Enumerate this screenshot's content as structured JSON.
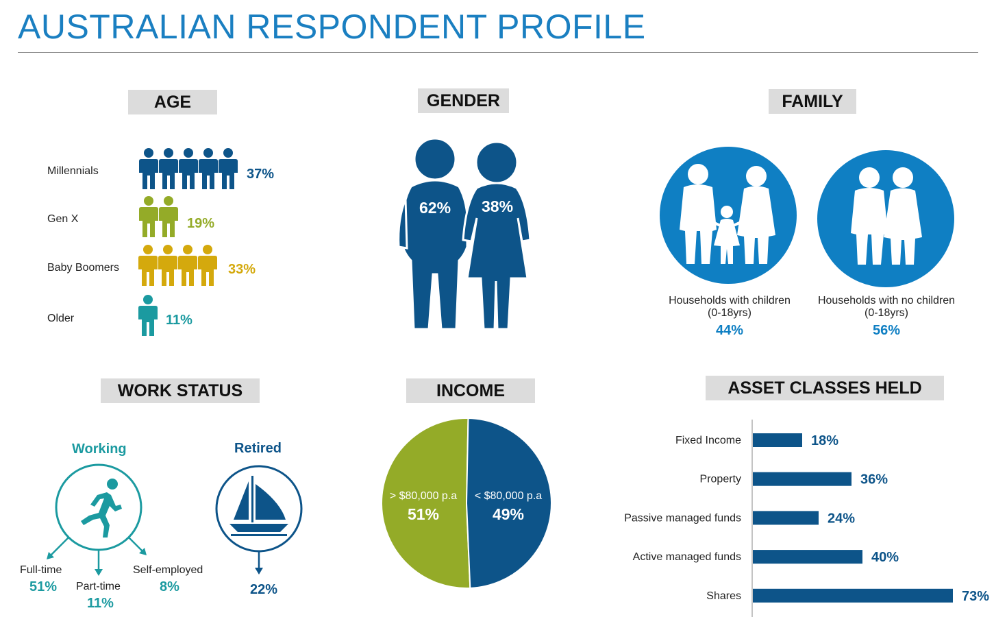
{
  "title": "AUSTRALIAN RESPONDENT PROFILE",
  "colors": {
    "title": "#1a7fc1",
    "navy": "#0d5489",
    "olive": "#94ab28",
    "gold": "#d4a90d",
    "teal": "#1b9aa0",
    "family_blue": "#0f7fc3",
    "pill_bg": "#dcdcdc"
  },
  "sections": {
    "age": "AGE",
    "gender": "GENDER",
    "family": "FAMILY",
    "work": "WORK STATUS",
    "income": "INCOME",
    "assets": "ASSET CLASSES HELD"
  },
  "age": {
    "groups": [
      {
        "label": "Millennials",
        "value": "37%",
        "icons": 5,
        "color": "#0d5489"
      },
      {
        "label": "Gen X",
        "value": "19%",
        "icons": 2,
        "color": "#94ab28"
      },
      {
        "label": "Baby Boomers",
        "value": "33%",
        "icons": 4,
        "color": "#d4a90d"
      },
      {
        "label": "Older",
        "value": "11%",
        "icons": 1,
        "color": "#1b9aa0"
      }
    ]
  },
  "gender": {
    "male": "62%",
    "female": "38%"
  },
  "family": {
    "with_children": {
      "line1": "Households with children",
      "line2": "(0-18yrs)",
      "value": "44%"
    },
    "no_children": {
      "line1": "Households with no children",
      "line2": "(0-18yrs)",
      "value": "56%"
    }
  },
  "work": {
    "working": {
      "title": "Working",
      "icon": "runner-icon",
      "fulltime": {
        "label": "Full-time",
        "value": "51%"
      },
      "parttime": {
        "label": "Part-time",
        "value": "11%"
      },
      "self": {
        "label": "Self-employed",
        "value": "8%"
      }
    },
    "retired": {
      "title": "Retired",
      "icon": "sailboat-icon",
      "value": "22%"
    }
  },
  "income": {
    "high": {
      "label": "> $80,000 p.a",
      "value": "51%"
    },
    "low": {
      "label": "< $80,000 p.a",
      "value": "49%"
    }
  },
  "chart_data": [
    {
      "type": "pie",
      "categories": [
        "> $80,000 p.a",
        "< $80,000 p.a"
      ],
      "values": [
        51,
        49
      ]
    },
    {
      "type": "bar",
      "orientation": "horizontal",
      "categories": [
        "Fixed Income",
        "Property",
        "Passive managed funds",
        "Active managed funds",
        "Shares"
      ],
      "values": [
        18,
        36,
        24,
        40,
        73
      ],
      "labels": [
        "18%",
        "36%",
        "24%",
        "40%",
        "73%"
      ]
    }
  ]
}
